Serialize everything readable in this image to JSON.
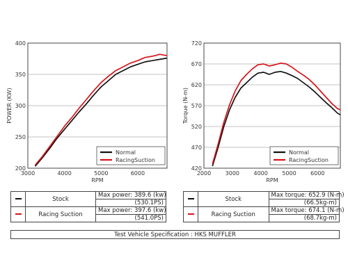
{
  "colors": {
    "stock": "#111111",
    "racing": "#d7141a"
  },
  "chart_data": [
    {
      "type": "line",
      "id": "power",
      "title": "",
      "xlabel": "RPM",
      "ylabel": "POWER (KW)",
      "xlim": [
        3000,
        6800
      ],
      "ylim": [
        200,
        400
      ],
      "xticks": [
        3000,
        4000,
        5000,
        6000
      ],
      "yticks": [
        200,
        250,
        300,
        350,
        400
      ],
      "grid": "horizontal",
      "legend_position": "bottom-right",
      "series": [
        {
          "name": "Normal",
          "color": "#111111",
          "x": [
            3200,
            3400,
            3600,
            3800,
            4000,
            4200,
            4400,
            4600,
            4800,
            5000,
            5200,
            5400,
            5600,
            5800,
            6000,
            6200,
            6400,
            6600,
            6800
          ],
          "y": [
            203,
            217,
            232,
            248,
            262,
            276,
            290,
            303,
            317,
            330,
            340,
            350,
            356,
            362,
            366,
            370,
            372,
            374,
            376
          ]
        },
        {
          "name": "RacingSuction",
          "color": "#d7141a",
          "x": [
            3200,
            3400,
            3600,
            3800,
            4000,
            4200,
            4400,
            4600,
            4800,
            5000,
            5200,
            5400,
            5600,
            5800,
            6000,
            6200,
            6400,
            6600,
            6800
          ],
          "y": [
            205,
            219,
            235,
            251,
            267,
            281,
            296,
            310,
            324,
            337,
            347,
            356,
            362,
            368,
            372,
            377,
            379,
            382,
            380
          ]
        }
      ]
    },
    {
      "type": "line",
      "id": "torque",
      "title": "",
      "xlabel": "RPM",
      "ylabel": "Torque (N-m)",
      "xlim": [
        2000,
        6800
      ],
      "ylim": [
        420,
        720
      ],
      "xticks": [
        2000,
        3000,
        4000,
        5000,
        6000
      ],
      "yticks": [
        420,
        470,
        520,
        570,
        620,
        670,
        720
      ],
      "grid": "horizontal",
      "legend_position": "bottom-right",
      "series": [
        {
          "name": "Normal",
          "color": "#111111",
          "x": [
            2300,
            2500,
            2700,
            2900,
            3100,
            3300,
            3500,
            3700,
            3900,
            4100,
            4300,
            4500,
            4700,
            4900,
            5100,
            5300,
            5500,
            5700,
            5900,
            6100,
            6300,
            6500,
            6700,
            6800
          ],
          "y": [
            425,
            470,
            520,
            560,
            590,
            612,
            625,
            638,
            648,
            650,
            645,
            650,
            652,
            648,
            642,
            635,
            625,
            615,
            603,
            590,
            577,
            565,
            552,
            548
          ]
        },
        {
          "name": "RacingSuction",
          "color": "#d7141a",
          "x": [
            2300,
            2500,
            2700,
            2900,
            3100,
            3300,
            3500,
            3700,
            3900,
            4100,
            4300,
            4500,
            4700,
            4900,
            5100,
            5300,
            5500,
            5700,
            5900,
            6100,
            6300,
            6500,
            6700,
            6800
          ],
          "y": [
            430,
            478,
            530,
            572,
            605,
            630,
            645,
            658,
            668,
            670,
            665,
            668,
            672,
            670,
            662,
            652,
            643,
            633,
            620,
            605,
            590,
            575,
            563,
            560
          ]
        }
      ]
    }
  ],
  "power_table": {
    "rows": [
      {
        "name": "Stock",
        "color": "#111111",
        "val1": "Max power: 389.6 (kw)",
        "val2": "(530.1PS)"
      },
      {
        "name": "Racing Suction",
        "color": "#d7141a",
        "val1": "Max power: 397.6 (kw)",
        "val2": "(541.0PS)"
      }
    ]
  },
  "torque_table": {
    "rows": [
      {
        "name": "Stock",
        "color": "#111111",
        "val1": "Max torque: 652.9 (N-m)",
        "val2": "(66.5kg-m)"
      },
      {
        "name": "Racing Suction",
        "color": "#d7141a",
        "val1": "Max torque: 674.1 (N-m)",
        "val2": "(68.7kg-m)"
      }
    ]
  },
  "spec": "Test Vehicle Specification : HKS MUFFLER"
}
